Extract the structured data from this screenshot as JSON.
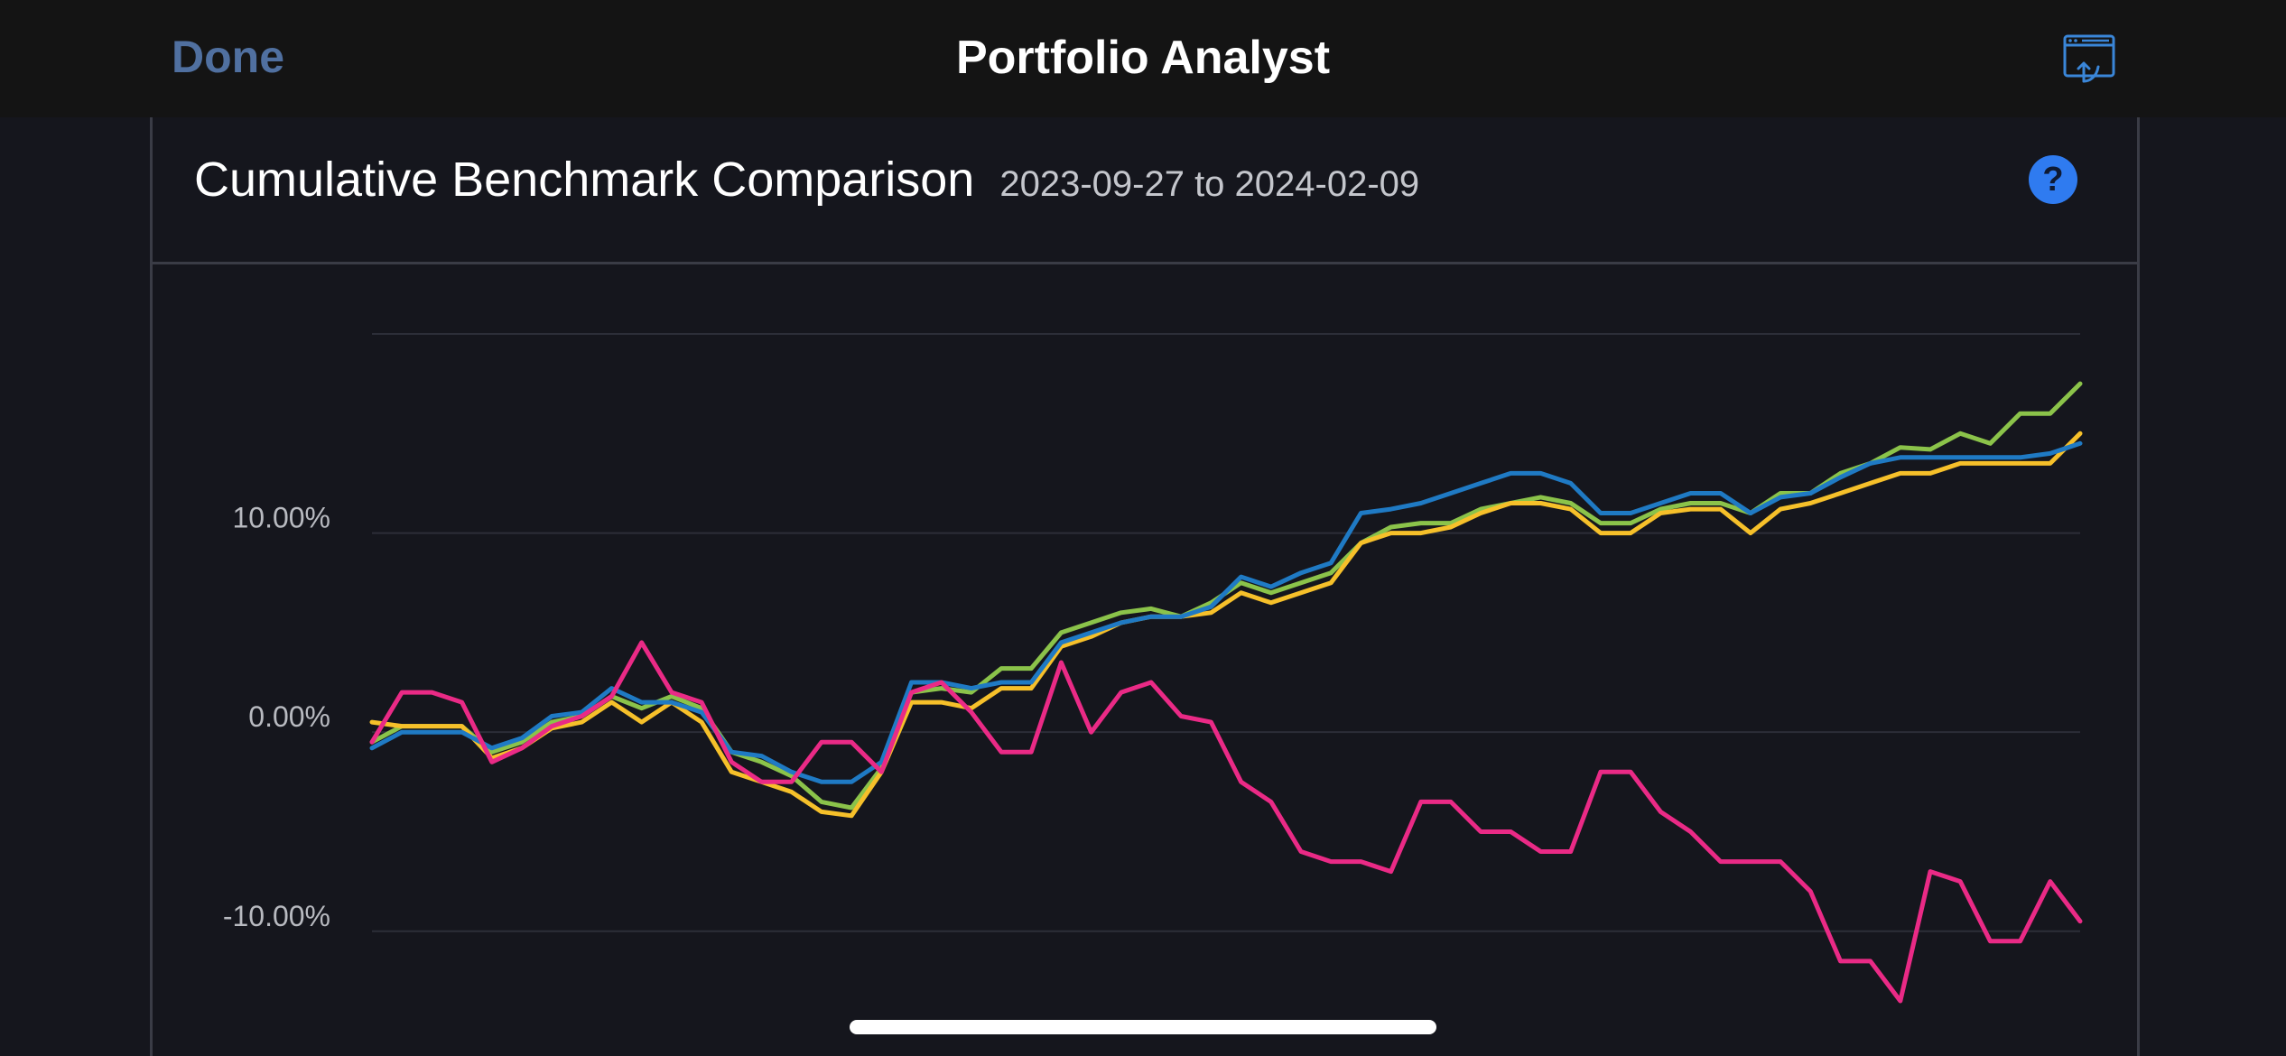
{
  "nav": {
    "done_label": "Done",
    "title": "Portfolio Analyst",
    "share_icon": "share-window-icon"
  },
  "panel": {
    "title": "Cumulative Benchmark Comparison",
    "date_range": "2023-09-27 to 2024-02-09",
    "help_label": "?"
  },
  "colors": {
    "green": "#8bc34a",
    "yellow": "#f6c02a",
    "blue": "#1f7ac4",
    "pink": "#ea2a86",
    "gridline": "#2c2e38"
  },
  "chart_data": {
    "type": "line",
    "title": "",
    "xlabel": "",
    "ylabel": "",
    "ylim": [
      -14,
      20
    ],
    "yticks": [
      {
        "value": 10,
        "label": "10.00%"
      },
      {
        "value": 0,
        "label": "0.00%"
      },
      {
        "value": -10,
        "label": "-10.00%"
      }
    ],
    "grid": true,
    "series": [
      {
        "color": "#8bc34a",
        "values": [
          -0.5,
          0.3,
          0.3,
          0.3,
          -1.0,
          -0.5,
          0.5,
          0.8,
          1.8,
          1.2,
          1.8,
          1.2,
          -1.0,
          -1.5,
          -2.2,
          -3.5,
          -3.8,
          -1.8,
          2.0,
          2.2,
          2.0,
          3.2,
          3.2,
          5.0,
          5.5,
          6.0,
          6.2,
          5.8,
          6.5,
          7.5,
          7.0,
          7.5,
          8.0,
          9.5,
          10.3,
          10.5,
          10.5,
          11.2,
          11.5,
          11.8,
          11.5,
          10.5,
          10.5,
          11.2,
          11.5,
          11.5,
          11.0,
          12.0,
          12.0,
          13.0,
          13.5,
          14.3,
          14.2,
          15.0,
          14.5,
          16.0,
          16.0,
          17.5
        ]
      },
      {
        "color": "#f6c02a",
        "values": [
          0.5,
          0.3,
          0.3,
          0.3,
          -1.3,
          -0.8,
          0.2,
          0.5,
          1.5,
          0.5,
          1.5,
          0.5,
          -2.0,
          -2.5,
          -3.0,
          -4.0,
          -4.2,
          -2.0,
          1.5,
          1.5,
          1.2,
          2.2,
          2.2,
          4.3,
          4.8,
          5.5,
          5.8,
          5.8,
          6.0,
          7.0,
          6.5,
          7.0,
          7.5,
          9.5,
          10.0,
          10.0,
          10.3,
          11.0,
          11.5,
          11.5,
          11.2,
          10.0,
          10.0,
          11.0,
          11.2,
          11.2,
          10.0,
          11.2,
          11.5,
          12.0,
          12.5,
          13.0,
          13.0,
          13.5,
          13.5,
          13.5,
          13.5,
          15.0
        ]
      },
      {
        "color": "#1f7ac4",
        "values": [
          -0.8,
          0.0,
          0.0,
          0.0,
          -0.8,
          -0.3,
          0.8,
          1.0,
          2.2,
          1.5,
          1.5,
          1.0,
          -1.0,
          -1.2,
          -2.0,
          -2.5,
          -2.5,
          -1.5,
          2.5,
          2.5,
          2.2,
          2.5,
          2.5,
          4.5,
          5.0,
          5.5,
          5.8,
          5.8,
          6.3,
          7.8,
          7.3,
          8.0,
          8.5,
          11.0,
          11.2,
          11.5,
          12.0,
          12.5,
          13.0,
          13.0,
          12.5,
          11.0,
          11.0,
          11.5,
          12.0,
          12.0,
          11.0,
          11.8,
          12.0,
          12.8,
          13.5,
          13.8,
          13.8,
          13.8,
          13.8,
          13.8,
          14.0,
          14.5
        ]
      },
      {
        "color": "#ea2a86",
        "values": [
          -0.5,
          2.0,
          2.0,
          1.5,
          -1.5,
          -0.8,
          0.3,
          0.8,
          1.8,
          4.5,
          2.0,
          1.5,
          -1.5,
          -2.5,
          -2.5,
          -0.5,
          -0.5,
          -2.0,
          2.0,
          2.5,
          1.0,
          -1.0,
          -1.0,
          3.5,
          0.0,
          2.0,
          2.5,
          0.8,
          0.5,
          -2.5,
          -3.5,
          -6.0,
          -6.5,
          -6.5,
          -7.0,
          -3.5,
          -3.5,
          -5.0,
          -5.0,
          -6.0,
          -6.0,
          -2.0,
          -2.0,
          -4.0,
          -5.0,
          -6.5,
          -6.5,
          -6.5,
          -8.0,
          -11.5,
          -11.5,
          -13.5,
          -7.0,
          -7.5,
          -10.5,
          -10.5,
          -7.5,
          -9.5
        ]
      }
    ]
  }
}
